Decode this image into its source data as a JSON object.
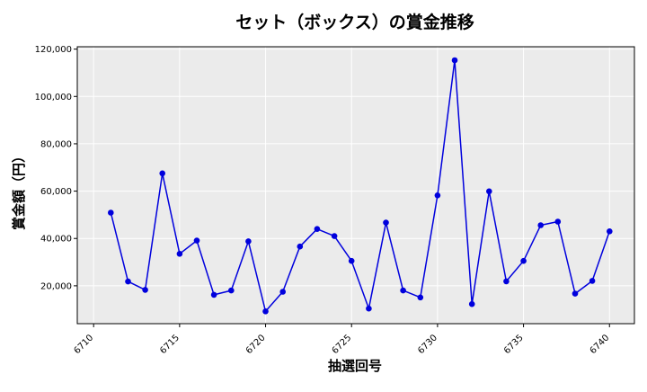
{
  "chart_data": {
    "type": "line",
    "title": "セット（ボックス）の賞金推移",
    "xlabel": "抽選回号",
    "ylabel": "賞金額（円）",
    "x": [
      6711,
      6712,
      6713,
      6714,
      6715,
      6716,
      6717,
      6718,
      6719,
      6720,
      6721,
      6722,
      6723,
      6724,
      6725,
      6726,
      6727,
      6728,
      6729,
      6730,
      6731,
      6732,
      6733,
      6734,
      6735,
      6736,
      6737,
      6738,
      6739,
      6740
    ],
    "series": [
      {
        "values": [
          50900,
          21800,
          18300,
          67500,
          33500,
          39100,
          16200,
          18000,
          38800,
          9200,
          17500,
          36600,
          44000,
          41000,
          30500,
          10400,
          46700,
          18000,
          15100,
          58200,
          115300,
          12300,
          59900,
          21900,
          30500,
          45600,
          47100,
          16700,
          22100,
          43000
        ],
        "color": "#0000dd"
      }
    ],
    "xticks": [
      "6710",
      "6715",
      "6720",
      "6725",
      "6730",
      "6735",
      "6740"
    ],
    "yticks": [
      "20,000",
      "40,000",
      "60,000",
      "80,000",
      "100,000",
      "120,000"
    ],
    "xlim": [
      6709.05,
      6741.45
    ],
    "ylim": [
      4000,
      121000
    ],
    "grid": true,
    "background": "#ebebeb",
    "grid_color": "#ffffff"
  }
}
